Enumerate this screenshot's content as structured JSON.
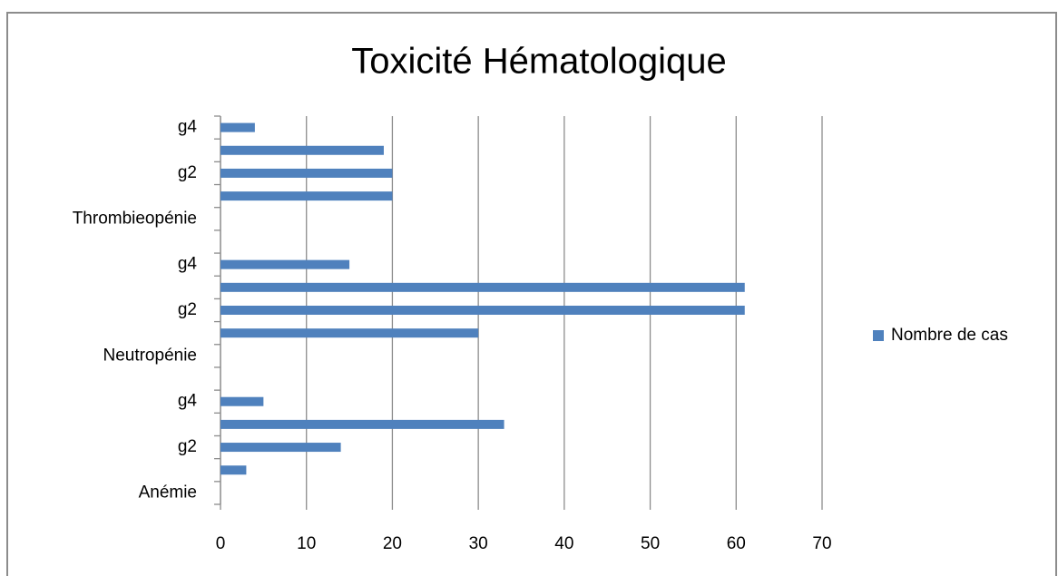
{
  "chart_data": {
    "type": "bar",
    "orientation": "horizontal",
    "title": "Toxicité Hématologique",
    "categories": [
      "Anémie",
      null,
      "g2",
      null,
      "g4",
      null,
      "Neutropénie",
      null,
      "g2",
      null,
      "g4",
      null,
      "Thrombieopénie",
      null,
      "g2",
      null,
      "g4"
    ],
    "series": [
      {
        "name": "Nombre de cas",
        "color": "#4f81bd",
        "values": [
          null,
          3,
          14,
          33,
          5,
          null,
          null,
          30,
          61,
          61,
          15,
          null,
          null,
          20,
          20,
          19,
          4
        ]
      }
    ],
    "xlim": [
      0,
      70
    ],
    "xticks": [
      0,
      10,
      20,
      30,
      40,
      50,
      60,
      70
    ],
    "grid": true,
    "legend": "right"
  }
}
